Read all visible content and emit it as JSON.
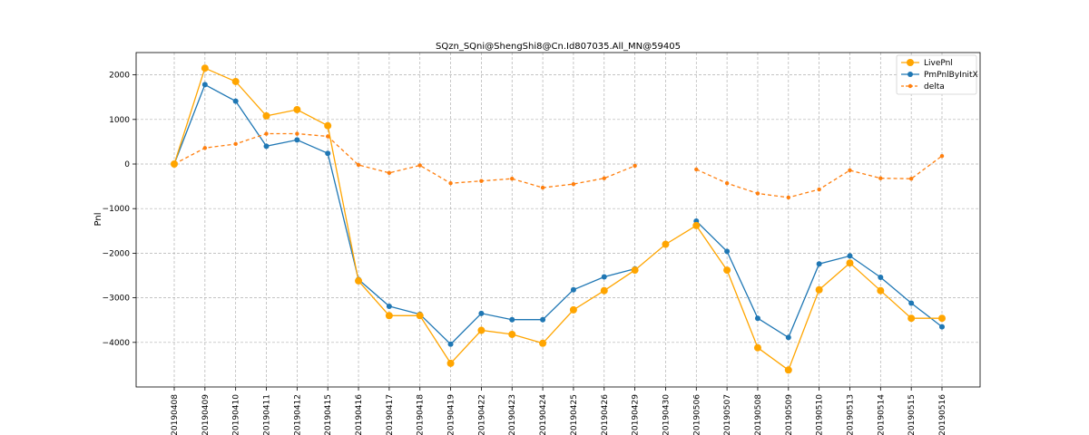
{
  "chart_data": {
    "type": "line",
    "title": "SQzn_SQni@ShengShi8@Cn.Id807035.All_MN@59405",
    "xlabel": "",
    "ylabel": "Pnl",
    "ylim": [
      -5000,
      2500
    ],
    "yticks": [
      2000,
      1000,
      0,
      -1000,
      -2000,
      -3000,
      -4000
    ],
    "ytick_labels": [
      "2000",
      "1000",
      "0",
      "−1000",
      "−2000",
      "−3000",
      "−4000"
    ],
    "grid": true,
    "legend_position": "top-right",
    "categories": [
      "20190408",
      "20190409",
      "20190410",
      "20190411",
      "20190412",
      "20190415",
      "20190416",
      "20190417",
      "20190418",
      "20190419",
      "20190422",
      "20190423",
      "20190424",
      "20190425",
      "20190426",
      "20190429",
      "20190430",
      "20190506",
      "20190507",
      "20190508",
      "20190509",
      "20190510",
      "20190513",
      "20190514",
      "20190515",
      "20190516"
    ],
    "series": [
      {
        "name": "LivePnl",
        "color": "#FFA500",
        "style": "solid",
        "marker": "large-circle",
        "values": [
          0,
          2150,
          1850,
          1080,
          1220,
          860,
          -2620,
          -3400,
          -3400,
          -4470,
          -3730,
          -3820,
          -4020,
          -3270,
          -2840,
          -2380,
          -1800,
          -1380,
          -2380,
          -4120,
          -4620,
          -2820,
          -2220,
          -2840,
          -3460,
          -3460
        ]
      },
      {
        "name": "PmPnlByInitX",
        "color": "#1F77B4",
        "style": "solid",
        "marker": "circle",
        "values": [
          0,
          1780,
          1410,
          400,
          540,
          240,
          -2590,
          -3190,
          -3370,
          -4040,
          -3350,
          -3490,
          -3490,
          -2820,
          -2530,
          -2350,
          null,
          -1280,
          -1960,
          -3460,
          -3890,
          -2240,
          -2060,
          -2540,
          -3120,
          -3650
        ]
      },
      {
        "name": "delta",
        "color": "#FF7F0E",
        "style": "dashed",
        "marker": "small-circle",
        "values": [
          0,
          360,
          450,
          680,
          680,
          620,
          -20,
          -200,
          -30,
          -430,
          -380,
          -330,
          -530,
          -450,
          -320,
          -40,
          null,
          -120,
          -430,
          -660,
          -750,
          -570,
          -140,
          -320,
          -330,
          180
        ]
      }
    ]
  }
}
